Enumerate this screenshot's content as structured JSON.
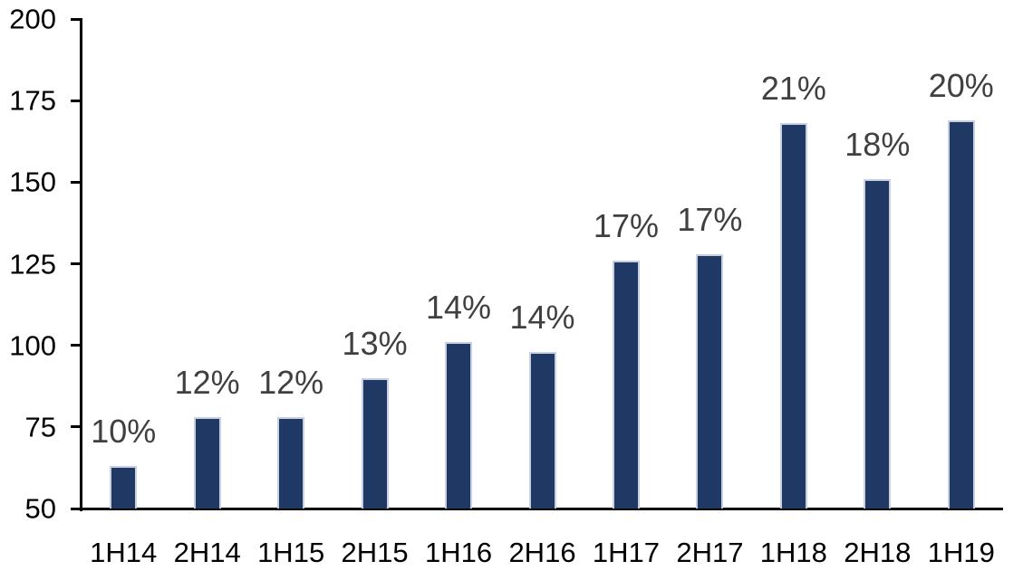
{
  "chart_data": {
    "type": "bar",
    "title": "",
    "xlabel": "",
    "ylabel": "",
    "categories": [
      "1H14",
      "2H14",
      "1H15",
      "2H15",
      "1H16",
      "2H16",
      "1H17",
      "2H17",
      "1H18",
      "2H18",
      "1H19"
    ],
    "values": [
      63,
      78,
      78,
      90,
      101,
      98,
      126,
      128,
      168,
      151,
      169
    ],
    "data_labels": [
      "10%",
      "12%",
      "12%",
      "13%",
      "14%",
      "14%",
      "17%",
      "17%",
      "21%",
      "18%",
      "20%"
    ],
    "ylim": [
      50,
      200
    ],
    "yticks": [
      50,
      75,
      100,
      125,
      150,
      175,
      200
    ],
    "grid": false,
    "legend": false,
    "colors": {
      "bar_fill": "#1F3864",
      "bar_border": "#C6D0E2",
      "data_label": "#404040",
      "axis": "#000000",
      "tick_label": "#000000",
      "background": "#FFFFFF"
    }
  }
}
